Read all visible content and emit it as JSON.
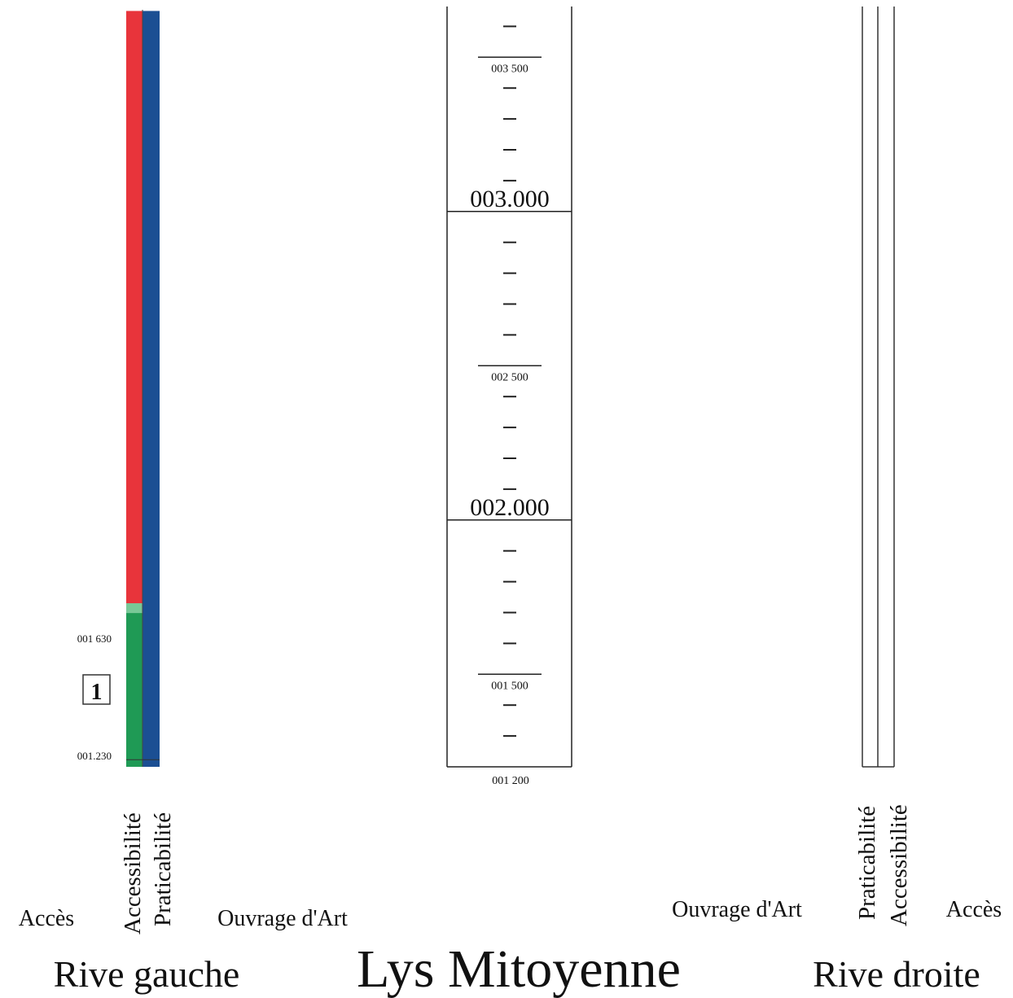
{
  "title": "Lys Mitoyenne",
  "left_bank": {
    "label": "Rive gauche",
    "columns": {
      "acces": "Accès",
      "accessibilite": "Accessibilité",
      "praticabilite": "Praticabilité",
      "ouvrage": "Ouvrage d'Art"
    },
    "km_labels": {
      "top": "001 630",
      "bottom": "001.230"
    },
    "section_marker": "1",
    "accessibilite_segments": [
      {
        "from_m": 1200,
        "to_m": 1730,
        "status": "green"
      },
      {
        "from_m": 1730,
        "to_m": 3650,
        "status": "red"
      }
    ],
    "praticabilite_segments": [
      {
        "from_m": 1200,
        "to_m": 3650,
        "status": "blue"
      }
    ]
  },
  "right_bank": {
    "label": "Rive droite",
    "columns": {
      "ouvrage": "Ouvrage d'Art",
      "praticabilite": "Praticabilité",
      "accessibilite": "Accessibilité",
      "acces": "Accès"
    }
  },
  "ruler": {
    "start_m": 1200,
    "bottom_label": "001 200",
    "major_labels": [
      {
        "m": 2000,
        "label": "002.000"
      },
      {
        "m": 3000,
        "label": "003.000"
      }
    ],
    "minor_labels": [
      {
        "m": 1500,
        "label": "001 500"
      },
      {
        "m": 2500,
        "label": "002 500"
      },
      {
        "m": 3500,
        "label": "003 500"
      }
    ],
    "tick_interval_m": 100
  },
  "colors": {
    "red": "#e8343b",
    "blue": "#1b4f93",
    "green": "#1f9a55",
    "light_green": "#8fd3a8"
  }
}
